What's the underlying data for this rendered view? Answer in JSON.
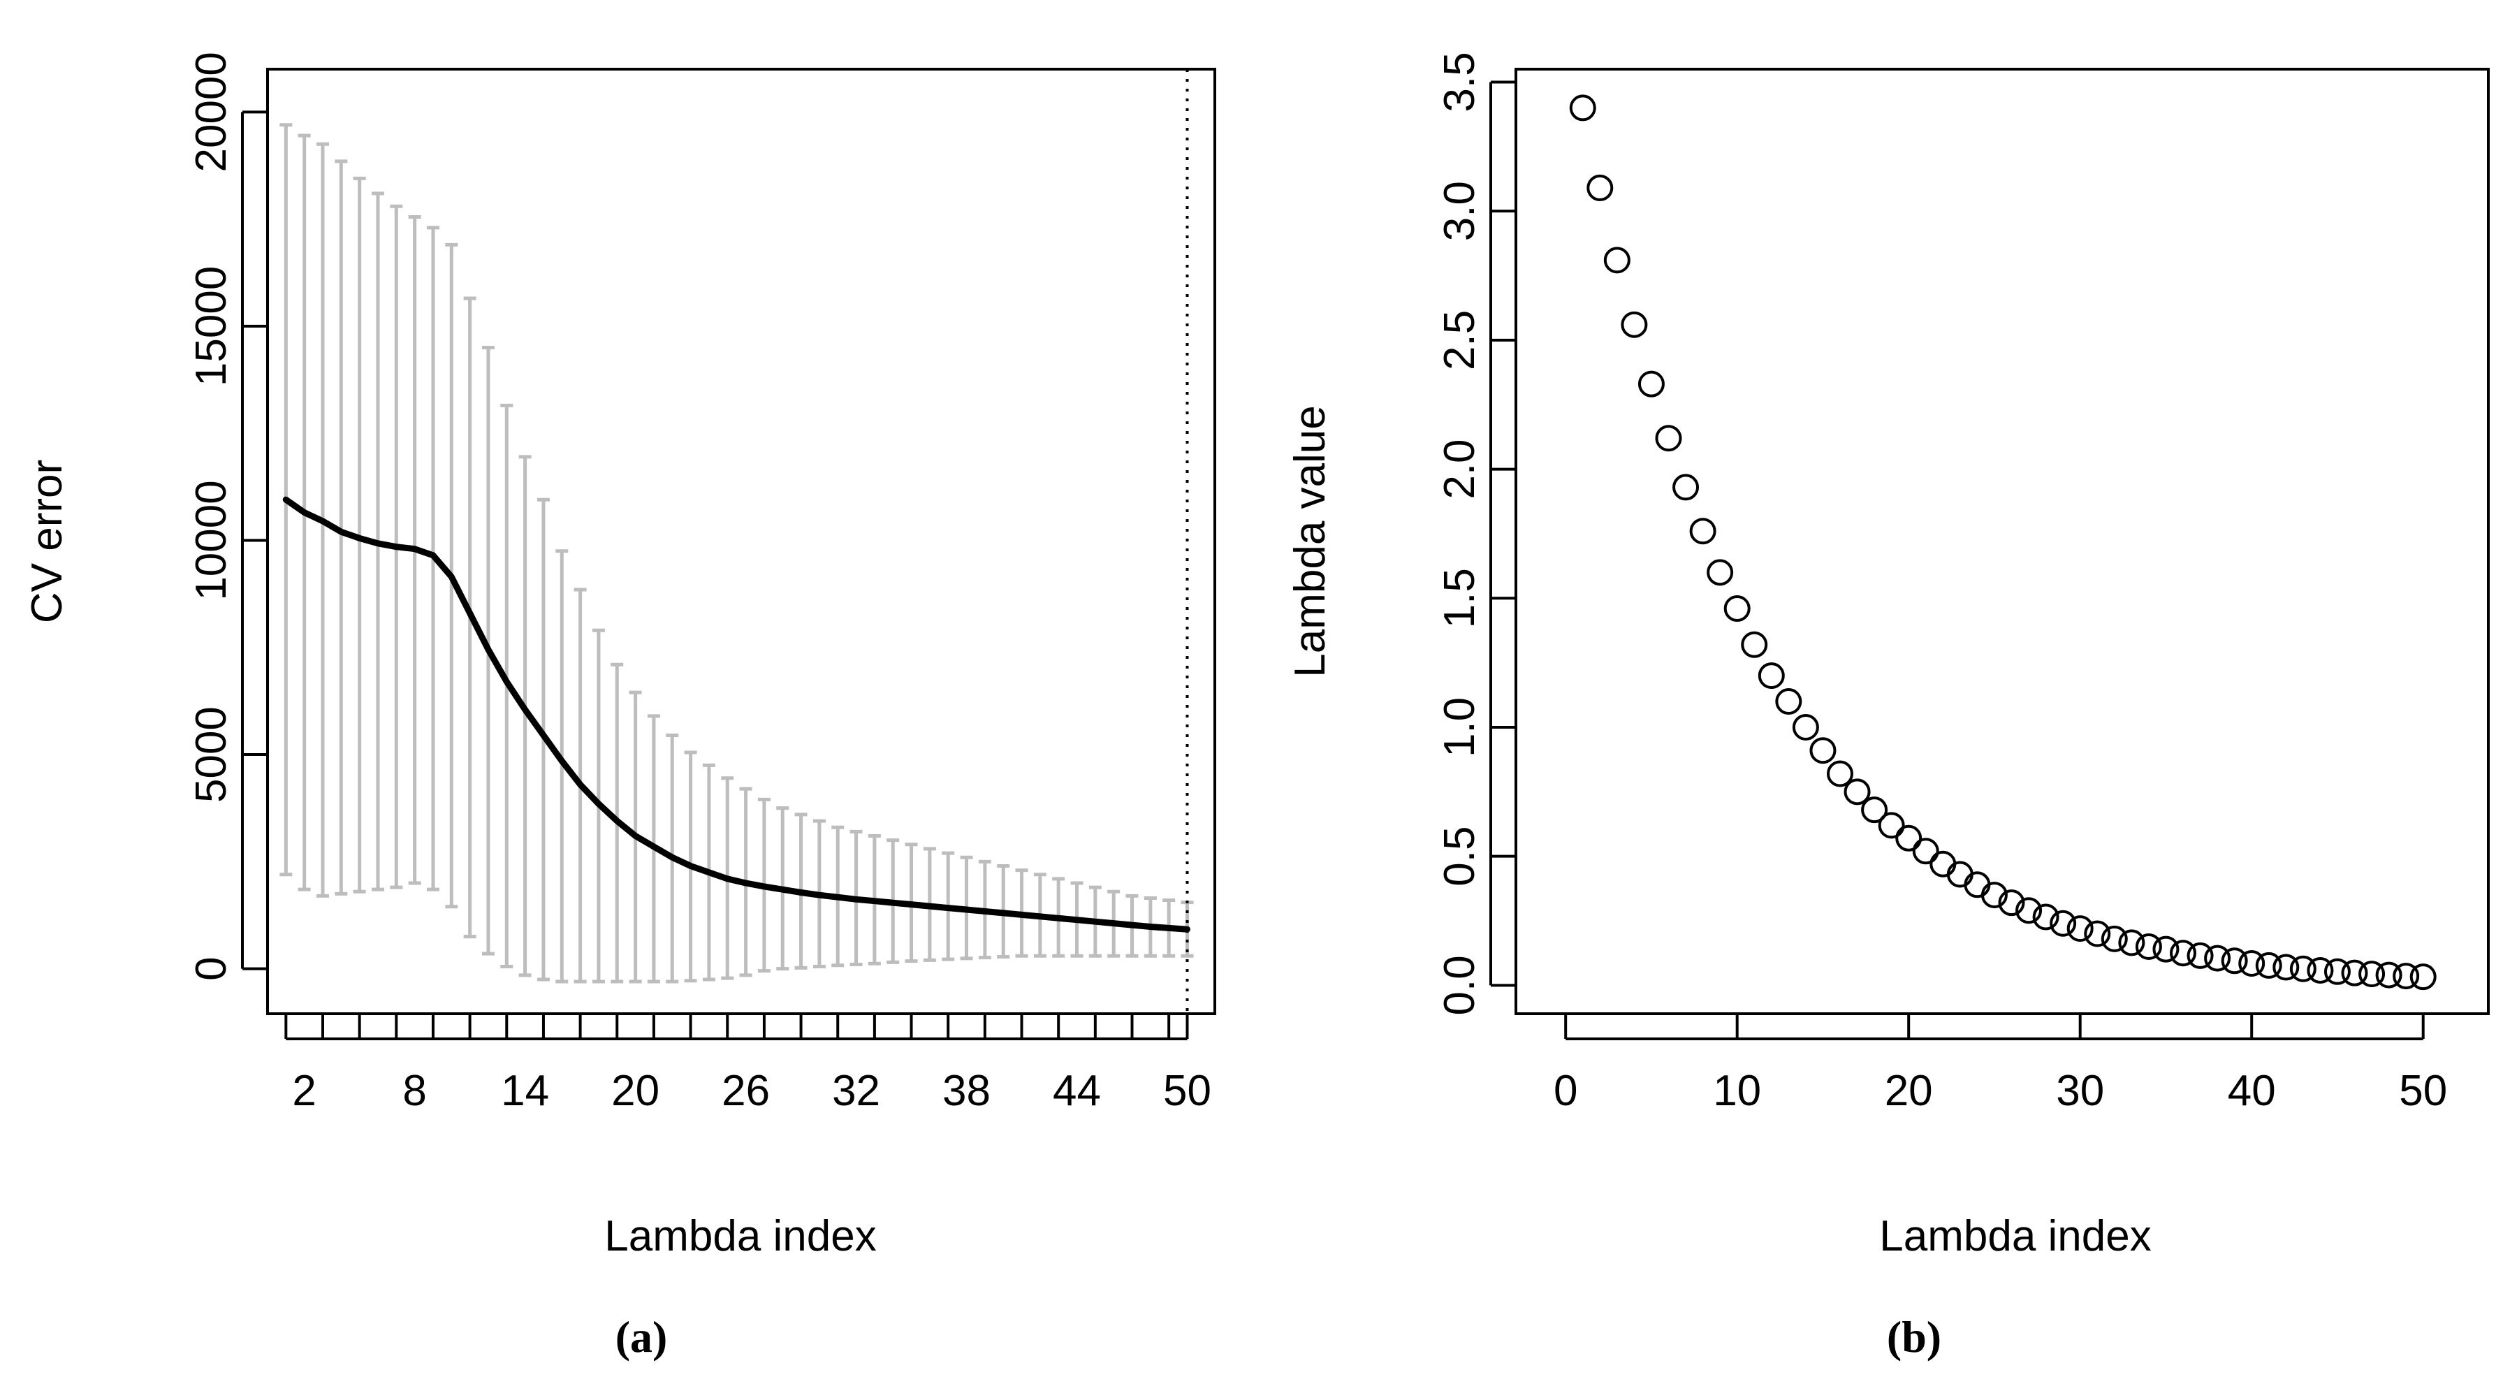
{
  "chart_data": [
    {
      "id": "a",
      "caption": "(a)",
      "type": "line",
      "xlabel": "Lambda index",
      "ylabel": "CV error",
      "x_tick_labels": [
        "2",
        "8",
        "14",
        "20",
        "26",
        "32",
        "38",
        "44",
        "50"
      ],
      "y_tick_labels": [
        "0",
        "5000",
        "10000",
        "15000",
        "20000"
      ],
      "xlim": [
        0,
        51.5
      ],
      "ylim": [
        -1050,
        21000
      ],
      "vline_x": 50,
      "series": [
        {
          "name": "CV error",
          "x": [
            1,
            2,
            3,
            4,
            5,
            6,
            7,
            8,
            9,
            10,
            11,
            12,
            13,
            14,
            15,
            16,
            17,
            18,
            19,
            20,
            21,
            22,
            23,
            24,
            25,
            26,
            27,
            28,
            29,
            30,
            31,
            32,
            33,
            34,
            35,
            36,
            37,
            38,
            39,
            40,
            41,
            42,
            43,
            44,
            45,
            46,
            47,
            48,
            49,
            50
          ],
          "mean": [
            10950,
            10650,
            10450,
            10200,
            10050,
            9930,
            9850,
            9800,
            9650,
            9150,
            8300,
            7450,
            6700,
            6050,
            5450,
            4850,
            4300,
            3850,
            3450,
            3100,
            2850,
            2600,
            2400,
            2250,
            2100,
            2000,
            1920,
            1850,
            1780,
            1720,
            1670,
            1620,
            1580,
            1540,
            1500,
            1460,
            1420,
            1380,
            1340,
            1300,
            1260,
            1220,
            1180,
            1140,
            1100,
            1060,
            1020,
            980,
            950,
            920
          ],
          "upper": [
            19700,
            19450,
            19250,
            18850,
            18450,
            18100,
            17800,
            17550,
            17300,
            16900,
            15650,
            14500,
            13150,
            11950,
            10950,
            9750,
            8850,
            7900,
            7100,
            6450,
            5900,
            5450,
            5050,
            4750,
            4450,
            4200,
            3950,
            3750,
            3600,
            3450,
            3300,
            3200,
            3100,
            3000,
            2900,
            2800,
            2700,
            2600,
            2500,
            2400,
            2300,
            2200,
            2100,
            2000,
            1900,
            1800,
            1700,
            1650,
            1600,
            1550
          ],
          "lower": [
            2200,
            1850,
            1700,
            1750,
            1800,
            1850,
            1900,
            2000,
            1850,
            1450,
            750,
            350,
            50,
            -150,
            -250,
            -300,
            -300,
            -300,
            -300,
            -300,
            -300,
            -300,
            -280,
            -250,
            -220,
            -150,
            -50,
            0,
            20,
            50,
            80,
            100,
            120,
            150,
            180,
            200,
            220,
            240,
            260,
            280,
            300,
            300,
            300,
            300,
            300,
            300,
            300,
            300,
            300,
            300
          ]
        }
      ]
    },
    {
      "id": "b",
      "caption": "(b)",
      "type": "scatter",
      "xlabel": "Lambda index",
      "ylabel": "Lambda value",
      "x_tick_labels": [
        "0",
        "10",
        "20",
        "30",
        "40",
        "50"
      ],
      "y_tick_labels": [
        "0.0",
        "0.5",
        "1.0",
        "1.5",
        "2.0",
        "2.5",
        "3.0",
        "3.5"
      ],
      "xlim": [
        -2.9,
        53.8
      ],
      "ylim": [
        -0.11,
        3.55
      ],
      "series": [
        {
          "name": "Lambda",
          "x": [
            1,
            2,
            3,
            4,
            5,
            6,
            7,
            8,
            9,
            10,
            11,
            12,
            13,
            14,
            15,
            16,
            17,
            18,
            19,
            20,
            21,
            22,
            23,
            24,
            25,
            26,
            27,
            28,
            29,
            30,
            31,
            32,
            33,
            34,
            35,
            36,
            37,
            38,
            39,
            40,
            41,
            42,
            43,
            44,
            45,
            46,
            47,
            48,
            49,
            50
          ],
          "y": [
            3.4,
            3.09,
            2.81,
            2.56,
            2.33,
            2.12,
            1.93,
            1.76,
            1.6,
            1.46,
            1.32,
            1.2,
            1.1,
            1.0,
            0.91,
            0.82,
            0.75,
            0.68,
            0.62,
            0.57,
            0.52,
            0.47,
            0.43,
            0.39,
            0.35,
            0.32,
            0.29,
            0.265,
            0.24,
            0.22,
            0.2,
            0.18,
            0.165,
            0.15,
            0.14,
            0.125,
            0.115,
            0.105,
            0.095,
            0.085,
            0.077,
            0.07,
            0.064,
            0.058,
            0.053,
            0.048,
            0.044,
            0.04,
            0.036,
            0.033
          ]
        }
      ]
    }
  ]
}
